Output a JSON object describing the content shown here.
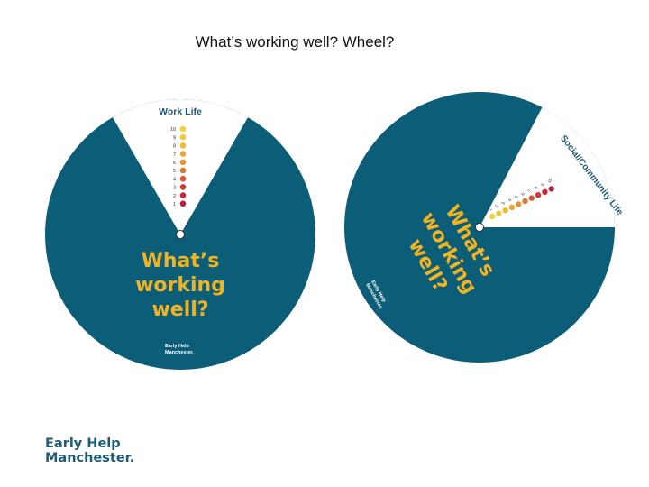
{
  "slide": {
    "title": "What’s working well? Wheel?"
  },
  "colors": {
    "teal": "#0c5d78",
    "gold": "#f0b323",
    "scale_colors": [
      "#b9213a",
      "#c4283a",
      "#cf3b36",
      "#d75a33",
      "#e07832",
      "#e69231",
      "#eaa632",
      "#edbb36",
      "#f0c83a",
      "#f2d23f"
    ]
  },
  "wheel_left": {
    "window_title": "Work Life",
    "scale": [
      "10",
      "9",
      "8",
      "7",
      "6",
      "5",
      "4",
      "3",
      "2",
      "1"
    ],
    "headline": [
      "What’s",
      "working",
      "well?"
    ],
    "logo": [
      "Early Help",
      "Manchester."
    ]
  },
  "wheel_right": {
    "window_title": "Social/Community Life",
    "scale": [
      "10",
      "9",
      "8",
      "7",
      "6",
      "5",
      "4",
      "3",
      "2",
      "1"
    ],
    "headline": [
      "What’s",
      "working",
      "well?"
    ],
    "logo": [
      "Early Help",
      "Manchester."
    ]
  },
  "footer": {
    "logo": [
      "Early Help",
      "Manchester."
    ]
  }
}
